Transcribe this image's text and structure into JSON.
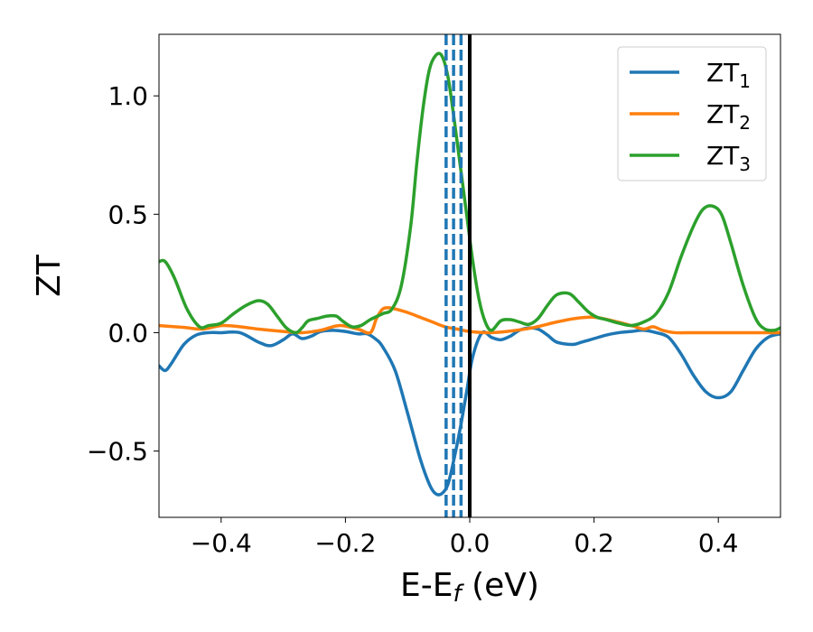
{
  "chart_data": {
    "type": "line",
    "title": "",
    "xlabel_main": "E-E",
    "xlabel_sub": "f",
    "xlabel_tail": " (eV)",
    "ylabel": "ZT",
    "xlim": [
      -0.5,
      0.5
    ],
    "ylim": [
      -0.78,
      1.26
    ],
    "xticks": [
      -0.4,
      -0.2,
      0.0,
      0.2,
      0.4
    ],
    "xtick_labels": [
      "−0.4",
      "−0.2",
      "0.0",
      "0.2",
      "0.4"
    ],
    "yticks": [
      -0.5,
      0.0,
      0.5,
      1.0
    ],
    "ytick_labels": [
      "−0.5",
      "0.0",
      "0.5",
      "1.0"
    ],
    "grid": false,
    "legend_position": "top-right",
    "vertical_lines": [
      {
        "x": 0.0,
        "style": "solid",
        "color": "#000000"
      },
      {
        "x": -0.038,
        "style": "dashed",
        "color": "#1f77b4"
      },
      {
        "x": -0.026,
        "style": "dashed",
        "color": "#1f77b4"
      },
      {
        "x": -0.014,
        "style": "dashed",
        "color": "#1f77b4"
      }
    ],
    "series": [
      {
        "name_main": "ZT",
        "name_sub": "1",
        "color": "#1f77b4",
        "x": [
          -0.5,
          -0.49,
          -0.48,
          -0.46,
          -0.44,
          -0.42,
          -0.4,
          -0.37,
          -0.34,
          -0.32,
          -0.3,
          -0.285,
          -0.27,
          -0.255,
          -0.24,
          -0.22,
          -0.2,
          -0.18,
          -0.165,
          -0.15,
          -0.14,
          -0.12,
          -0.1,
          -0.08,
          -0.065,
          -0.055,
          -0.045,
          -0.035,
          -0.025,
          -0.015,
          -0.005,
          0.005,
          0.02,
          0.035,
          0.05,
          0.065,
          0.08,
          0.095,
          0.11,
          0.125,
          0.14,
          0.165,
          0.18,
          0.2,
          0.22,
          0.24,
          0.26,
          0.28,
          0.3,
          0.32,
          0.34,
          0.36,
          0.38,
          0.4,
          0.42,
          0.44,
          0.46,
          0.48,
          0.5
        ],
        "y": [
          -0.14,
          -0.16,
          -0.13,
          -0.05,
          -0.01,
          0.0,
          0.0,
          0.0,
          -0.04,
          -0.055,
          -0.03,
          -0.005,
          -0.025,
          -0.015,
          0.005,
          0.01,
          0.005,
          -0.005,
          -0.005,
          -0.03,
          -0.06,
          -0.16,
          -0.34,
          -0.53,
          -0.64,
          -0.68,
          -0.68,
          -0.64,
          -0.53,
          -0.4,
          -0.25,
          -0.1,
          0.0,
          -0.02,
          -0.03,
          -0.015,
          0.01,
          0.02,
          0.015,
          -0.01,
          -0.04,
          -0.05,
          -0.04,
          -0.025,
          -0.01,
          0.0,
          0.005,
          0.01,
          0.0,
          -0.02,
          -0.09,
          -0.18,
          -0.25,
          -0.275,
          -0.25,
          -0.16,
          -0.07,
          -0.02,
          -0.005
        ]
      },
      {
        "name_main": "ZT",
        "name_sub": "2",
        "color": "#ff7f0e",
        "x": [
          -0.5,
          -0.46,
          -0.43,
          -0.4,
          -0.37,
          -0.34,
          -0.3,
          -0.27,
          -0.24,
          -0.21,
          -0.18,
          -0.16,
          -0.15,
          -0.14,
          -0.13,
          -0.12,
          -0.1,
          -0.08,
          -0.06,
          -0.04,
          -0.02,
          0.0,
          0.03,
          0.06,
          0.1,
          0.14,
          0.17,
          0.2,
          0.23,
          0.26,
          0.28,
          0.295,
          0.31,
          0.33,
          0.36,
          0.4,
          0.45,
          0.5
        ],
        "y": [
          0.03,
          0.022,
          0.015,
          0.03,
          0.025,
          0.015,
          0.005,
          0.0,
          0.01,
          0.03,
          0.015,
          0.0,
          0.06,
          0.1,
          0.105,
          0.1,
          0.085,
          0.065,
          0.045,
          0.025,
          0.015,
          0.005,
          0.0,
          0.005,
          0.02,
          0.045,
          0.06,
          0.065,
          0.05,
          0.03,
          0.015,
          0.025,
          0.01,
          0.0,
          0.0,
          0.0,
          0.0,
          0.0
        ]
      },
      {
        "name_main": "ZT",
        "name_sub": "3",
        "color": "#2ca02c",
        "x": [
          -0.5,
          -0.49,
          -0.475,
          -0.455,
          -0.435,
          -0.42,
          -0.4,
          -0.38,
          -0.36,
          -0.34,
          -0.325,
          -0.31,
          -0.295,
          -0.28,
          -0.27,
          -0.26,
          -0.245,
          -0.23,
          -0.215,
          -0.205,
          -0.19,
          -0.175,
          -0.16,
          -0.14,
          -0.125,
          -0.11,
          -0.095,
          -0.085,
          -0.075,
          -0.065,
          -0.055,
          -0.045,
          -0.035,
          -0.025,
          -0.015,
          -0.005,
          0.005,
          0.015,
          0.025,
          0.035,
          0.05,
          0.065,
          0.08,
          0.095,
          0.11,
          0.125,
          0.14,
          0.16,
          0.175,
          0.19,
          0.205,
          0.22,
          0.24,
          0.26,
          0.28,
          0.3,
          0.32,
          0.34,
          0.36,
          0.375,
          0.39,
          0.405,
          0.42,
          0.44,
          0.46,
          0.475,
          0.49,
          0.5
        ],
        "y": [
          0.3,
          0.3,
          0.23,
          0.1,
          0.025,
          0.03,
          0.04,
          0.08,
          0.115,
          0.135,
          0.12,
          0.07,
          0.02,
          0.0,
          0.02,
          0.05,
          0.06,
          0.07,
          0.07,
          0.05,
          0.025,
          0.03,
          0.055,
          0.08,
          0.1,
          0.2,
          0.45,
          0.72,
          0.95,
          1.11,
          1.17,
          1.17,
          1.08,
          0.9,
          0.7,
          0.5,
          0.3,
          0.14,
          0.045,
          0.01,
          0.05,
          0.055,
          0.045,
          0.035,
          0.06,
          0.115,
          0.16,
          0.165,
          0.13,
          0.09,
          0.065,
          0.055,
          0.04,
          0.03,
          0.045,
          0.08,
          0.17,
          0.32,
          0.45,
          0.52,
          0.535,
          0.5,
          0.38,
          0.2,
          0.06,
          0.015,
          0.01,
          0.02
        ]
      }
    ]
  }
}
